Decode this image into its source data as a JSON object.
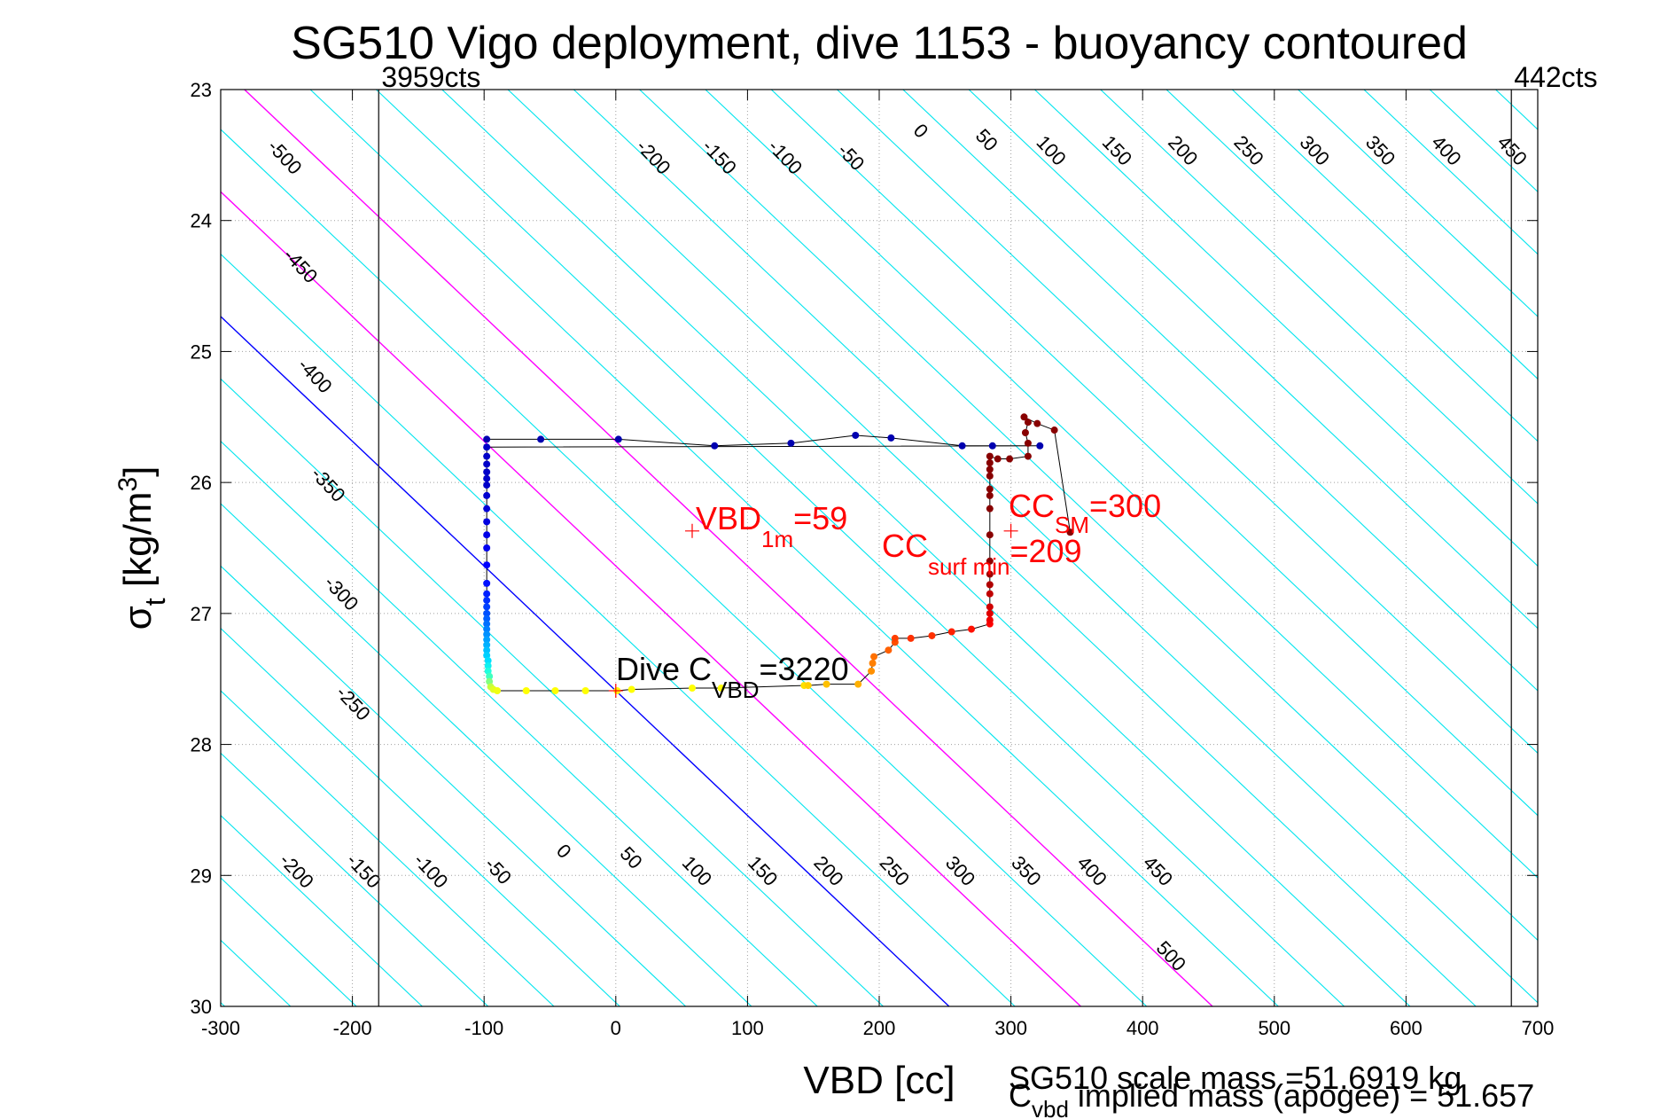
{
  "chart_data": {
    "type": "scatter",
    "title": "SG510 Vigo deployment, dive 1153 - buoyancy contoured",
    "xlabel": "VBD [cc]",
    "ylabel": {
      "main": "σ",
      "sub": "t",
      "unit": " [kg/m",
      "sup": "3",
      "close": "]"
    },
    "xlim": [
      -300,
      700
    ],
    "ylim": [
      30,
      23
    ],
    "xticks": [
      -300,
      -200,
      -100,
      0,
      100,
      200,
      300,
      400,
      500,
      600,
      700
    ],
    "yticks": [
      23,
      24,
      25,
      26,
      27,
      28,
      29,
      30
    ],
    "grid": true,
    "vbd_limits": [
      {
        "x": -180,
        "label": "3959cts"
      },
      {
        "x": 680,
        "label": "442cts"
      }
    ],
    "contours": {
      "slope_cc_per_sigma": 105,
      "levels": [
        -500,
        -450,
        -400,
        -350,
        -300,
        -250,
        -200,
        -150,
        -100,
        -50,
        0,
        50,
        100,
        150,
        200,
        250,
        300,
        350,
        400,
        450,
        500
      ],
      "highlight": [
        {
          "level": 0,
          "color": "#0000ff"
        },
        {
          "level": 100,
          "color": "#ff00ff"
        },
        {
          "level": 200,
          "color": "#ff00ff"
        }
      ],
      "base_color": "#00e5ee",
      "top_labels": [
        {
          "level": -500,
          "x": -255,
          "y": 23.55
        },
        {
          "level": -450,
          "x": -243,
          "y": 24.38
        },
        {
          "level": -400,
          "x": -232,
          "y": 25.22
        },
        {
          "level": -350,
          "x": -222,
          "y": 26.05
        },
        {
          "level": -300,
          "x": -212,
          "y": 26.88
        },
        {
          "level": -250,
          "x": -203,
          "y": 27.72
        },
        {
          "level": -200,
          "x": 25,
          "y": 23.55
        },
        {
          "level": -150,
          "x": 75,
          "y": 23.55
        },
        {
          "level": -100,
          "x": 125,
          "y": 23.55
        },
        {
          "level": -50,
          "x": 175,
          "y": 23.55
        },
        {
          "level": 0,
          "x": 228,
          "y": 23.35
        },
        {
          "level": 50,
          "x": 278,
          "y": 23.42
        },
        {
          "level": 100,
          "x": 327,
          "y": 23.5
        },
        {
          "level": 150,
          "x": 377,
          "y": 23.5
        },
        {
          "level": 200,
          "x": 427,
          "y": 23.5
        },
        {
          "level": 250,
          "x": 477,
          "y": 23.5
        },
        {
          "level": 300,
          "x": 527,
          "y": 23.5
        },
        {
          "level": 350,
          "x": 577,
          "y": 23.5
        },
        {
          "level": 400,
          "x": 627,
          "y": 23.5
        },
        {
          "level": 450,
          "x": 677,
          "y": 23.5
        }
      ],
      "bottom_labels": [
        {
          "level": -200,
          "x": -246,
          "y": 29.0
        },
        {
          "level": -150,
          "x": -195,
          "y": 29.0
        },
        {
          "level": -100,
          "x": -144,
          "y": 29.0
        },
        {
          "level": -50,
          "x": -93,
          "y": 29.0
        },
        {
          "level": 0,
          "x": -43,
          "y": 28.85
        },
        {
          "level": 50,
          "x": 8,
          "y": 28.9
        },
        {
          "level": 100,
          "x": 58,
          "y": 29.0
        },
        {
          "level": 150,
          "x": 108,
          "y": 29.0
        },
        {
          "level": 200,
          "x": 158,
          "y": 29.0
        },
        {
          "level": 250,
          "x": 208,
          "y": 29.0
        },
        {
          "level": 300,
          "x": 258,
          "y": 29.0
        },
        {
          "level": 350,
          "x": 308,
          "y": 29.0
        },
        {
          "level": 400,
          "x": 358,
          "y": 29.0
        },
        {
          "level": 450,
          "x": 408,
          "y": 29.0
        },
        {
          "level": 500,
          "x": 418,
          "y": 29.65
        }
      ]
    },
    "series": [
      {
        "name": "dive-track",
        "line_color": "#000000",
        "points": [
          [
            -98,
            25.67,
            "#0000b0"
          ],
          [
            -57,
            25.67,
            "#0000b0"
          ],
          [
            2,
            25.67,
            "#0000b0"
          ],
          [
            75,
            25.72,
            "#0000b0"
          ],
          [
            133,
            25.7,
            "#0000b0"
          ],
          [
            182,
            25.64,
            "#0000b0"
          ],
          [
            209,
            25.66,
            "#0000b0"
          ],
          [
            263,
            25.72,
            "#0000b0"
          ],
          [
            286,
            25.72,
            "#0000b0"
          ],
          [
            322,
            25.72,
            "#0000b0"
          ],
          [
            -98,
            25.73,
            "#0000c8"
          ],
          [
            -98,
            25.8,
            "#0000c8"
          ],
          [
            -98,
            25.86,
            "#0000c8"
          ],
          [
            -98,
            25.92,
            "#0000c8"
          ],
          [
            -98,
            25.97,
            "#0000c8"
          ],
          [
            -98,
            26.02,
            "#0000c8"
          ],
          [
            -98,
            26.1,
            "#0000d0"
          ],
          [
            -98,
            26.2,
            "#0000d8"
          ],
          [
            -98,
            26.3,
            "#0000e0"
          ],
          [
            -98,
            26.4,
            "#0000e8"
          ],
          [
            -98,
            26.5,
            "#0000f0"
          ],
          [
            -98,
            26.63,
            "#0000ff"
          ],
          [
            -98,
            26.77,
            "#0010ff"
          ],
          [
            -98,
            26.85,
            "#0020ff"
          ],
          [
            -98,
            26.9,
            "#0030ff"
          ],
          [
            -98,
            26.95,
            "#0040ff"
          ],
          [
            -98,
            27.0,
            "#0050ff"
          ],
          [
            -98,
            27.04,
            "#0060ff"
          ],
          [
            -98,
            27.08,
            "#0070ff"
          ],
          [
            -98,
            27.12,
            "#0080ff"
          ],
          [
            -98,
            27.16,
            "#0090ff"
          ],
          [
            -98,
            27.2,
            "#00a0ff"
          ],
          [
            -98,
            27.24,
            "#00b0ff"
          ],
          [
            -98,
            27.28,
            "#00c0ff"
          ],
          [
            -98,
            27.32,
            "#00d0ff"
          ],
          [
            -97,
            27.36,
            "#00e0ff"
          ],
          [
            -97,
            27.4,
            "#10f0f0"
          ],
          [
            -97,
            27.44,
            "#20ffe0"
          ],
          [
            -96,
            27.48,
            "#40ffc0"
          ],
          [
            -96,
            27.52,
            "#80ff80"
          ],
          [
            -95,
            27.56,
            "#c0ff40"
          ],
          [
            -93,
            27.58,
            "#e0ff20"
          ],
          [
            -90,
            27.59,
            "#f0ff10"
          ],
          [
            -68,
            27.59,
            "#ffff00"
          ],
          [
            -46,
            27.59,
            "#ffff00"
          ],
          [
            -23,
            27.59,
            "#ffff00"
          ],
          [
            1,
            27.59,
            "#ffff00"
          ],
          [
            12,
            27.58,
            "#ffff00"
          ],
          [
            58,
            27.57,
            "#ffff00"
          ],
          [
            80,
            27.57,
            "#ffff00"
          ],
          [
            143,
            27.55,
            "#ffe000"
          ],
          [
            146,
            27.55,
            "#ffd000"
          ],
          [
            160,
            27.54,
            "#ffc000"
          ],
          [
            184,
            27.54,
            "#ffb000"
          ],
          [
            194,
            27.44,
            "#ff9000"
          ],
          [
            195,
            27.38,
            "#ff8000"
          ],
          [
            196,
            27.33,
            "#ff7000"
          ],
          [
            207,
            27.28,
            "#ff6000"
          ],
          [
            212,
            27.22,
            "#ff5000"
          ],
          [
            212,
            27.19,
            "#ff4000"
          ],
          [
            224,
            27.19,
            "#ff3000"
          ],
          [
            240,
            27.17,
            "#ff3000"
          ],
          [
            255,
            27.14,
            "#ff2000"
          ],
          [
            270,
            27.12,
            "#ff1000"
          ],
          [
            284,
            27.08,
            "#ff0000"
          ],
          [
            284,
            27.05,
            "#f00000"
          ],
          [
            284,
            27.0,
            "#e00000"
          ],
          [
            284,
            26.95,
            "#d00000"
          ],
          [
            284,
            26.85,
            "#c00000"
          ],
          [
            284,
            26.78,
            "#b00000"
          ],
          [
            284,
            26.7,
            "#a00000"
          ],
          [
            284,
            26.6,
            "#900000"
          ],
          [
            284,
            26.4,
            "#880000"
          ],
          [
            284,
            26.2,
            "#880000"
          ],
          [
            284,
            26.1,
            "#880000"
          ],
          [
            284,
            26.05,
            "#880000"
          ],
          [
            284,
            25.95,
            "#880000"
          ],
          [
            284,
            25.9,
            "#880000"
          ],
          [
            284,
            25.85,
            "#880000"
          ],
          [
            284,
            25.8,
            "#880000"
          ],
          [
            290,
            25.82,
            "#880000"
          ],
          [
            299,
            25.82,
            "#880000"
          ],
          [
            313,
            25.8,
            "#880000"
          ],
          [
            313,
            25.7,
            "#880000"
          ],
          [
            311,
            25.62,
            "#880000"
          ],
          [
            313,
            25.54,
            "#880000"
          ],
          [
            310,
            25.5,
            "#880000"
          ],
          [
            320,
            25.55,
            "#880000"
          ],
          [
            333,
            25.6,
            "#880000"
          ],
          [
            345,
            26.38,
            "#880000"
          ]
        ]
      }
    ],
    "markers": [
      {
        "x": 58,
        "y": 26.37,
        "color": "#ff0000"
      },
      {
        "x": 300,
        "y": 26.37,
        "color": "#ff0000"
      },
      {
        "x": 0,
        "y": 27.59,
        "color": "#ff0000"
      }
    ],
    "annotations": {
      "vbd1m": {
        "main": "VBD",
        "sub": "1m",
        "tail": "=59"
      },
      "cc_surf_min": {
        "main": "CC",
        "sub": "surf min",
        "tail": "=209"
      },
      "cc_sm": {
        "main": "CC",
        "sub": "SM",
        "tail": "=300"
      },
      "dive_cvbd": {
        "main": "Dive C",
        "sub": "VBD",
        "tail": "=3220"
      },
      "scale_mass": "SG510 scale mass =51.6919 kg",
      "implied_mass": {
        "main": "C",
        "sub": "vbd",
        "tail": " implied mass (apogee) = 51.657"
      }
    }
  }
}
